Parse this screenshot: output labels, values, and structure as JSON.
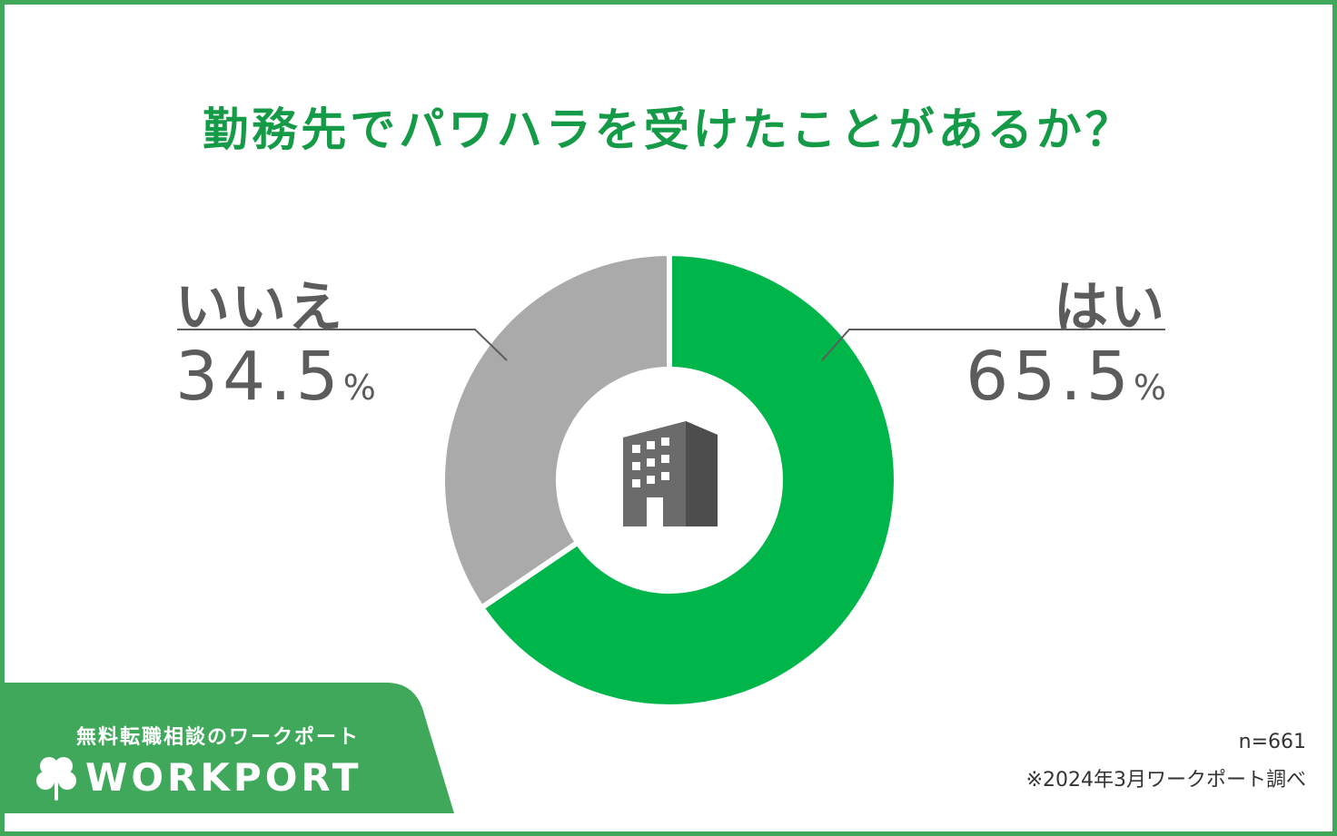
{
  "title": "勤務先でパワハラを受けたことがあるか？",
  "chart_data": {
    "type": "pie",
    "style": "donut",
    "title": "勤務先でパワハラを受けたことがあるか？",
    "slices": [
      {
        "label": "はい",
        "value": 65.5,
        "display": "65.5",
        "unit": "%",
        "color": "#00b64b"
      },
      {
        "label": "いいえ",
        "value": 34.5,
        "display": "34.5",
        "unit": "%",
        "color": "#aaaaaa"
      }
    ],
    "center_icon": "office-building-icon",
    "sample_note": "n=661"
  },
  "footer": {
    "sample": "n=661",
    "source": "※2024年3月ワークポート調べ"
  },
  "brand": {
    "tagline": "無料転職相談のワークポート",
    "wordmark": "WORKPORT",
    "logo_icon": "clover-icon",
    "panel_color": "#3fa85a"
  },
  "colors": {
    "title": "#159a47",
    "accent": "#00b64b",
    "secondary": "#aaaaaa",
    "label_text": "#5c5c5c"
  }
}
